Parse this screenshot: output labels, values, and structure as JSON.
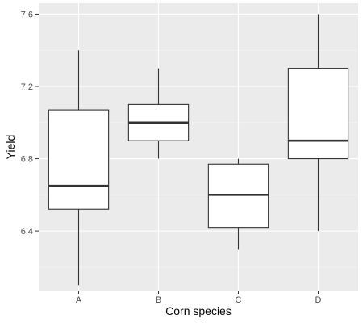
{
  "chart_data": {
    "type": "boxplot",
    "xlabel": "Corn species",
    "ylabel": "Yield",
    "ylim": [
      6.07,
      7.66
    ],
    "yticks": [
      6.4,
      6.8,
      7.2,
      7.6
    ],
    "ytick_labels": [
      "6.4",
      "6.8",
      "7.2",
      "7.6"
    ],
    "categories": [
      "A",
      "B",
      "C",
      "D"
    ],
    "boxes": [
      {
        "category": "A",
        "min": 6.1,
        "q1": 6.52,
        "median": 6.65,
        "q3": 7.07,
        "max": 7.4
      },
      {
        "category": "B",
        "min": 6.8,
        "q1": 6.9,
        "median": 7.0,
        "q3": 7.1,
        "max": 7.3
      },
      {
        "category": "C",
        "min": 6.3,
        "q1": 6.42,
        "median": 6.6,
        "q3": 6.77,
        "max": 6.8
      },
      {
        "category": "D",
        "min": 6.4,
        "q1": 6.8,
        "median": 6.9,
        "q3": 7.3,
        "max": 7.6
      }
    ],
    "grid": true,
    "legend": "none",
    "colors": {
      "panel_background": "#ebebeb",
      "grid_major": "#ffffff",
      "grid_minor": "#f5f5f5",
      "box_fill": "#ffffff",
      "box_stroke": "#333333",
      "tick_text": "#4d4d4d",
      "axis_title": "#000000"
    }
  }
}
